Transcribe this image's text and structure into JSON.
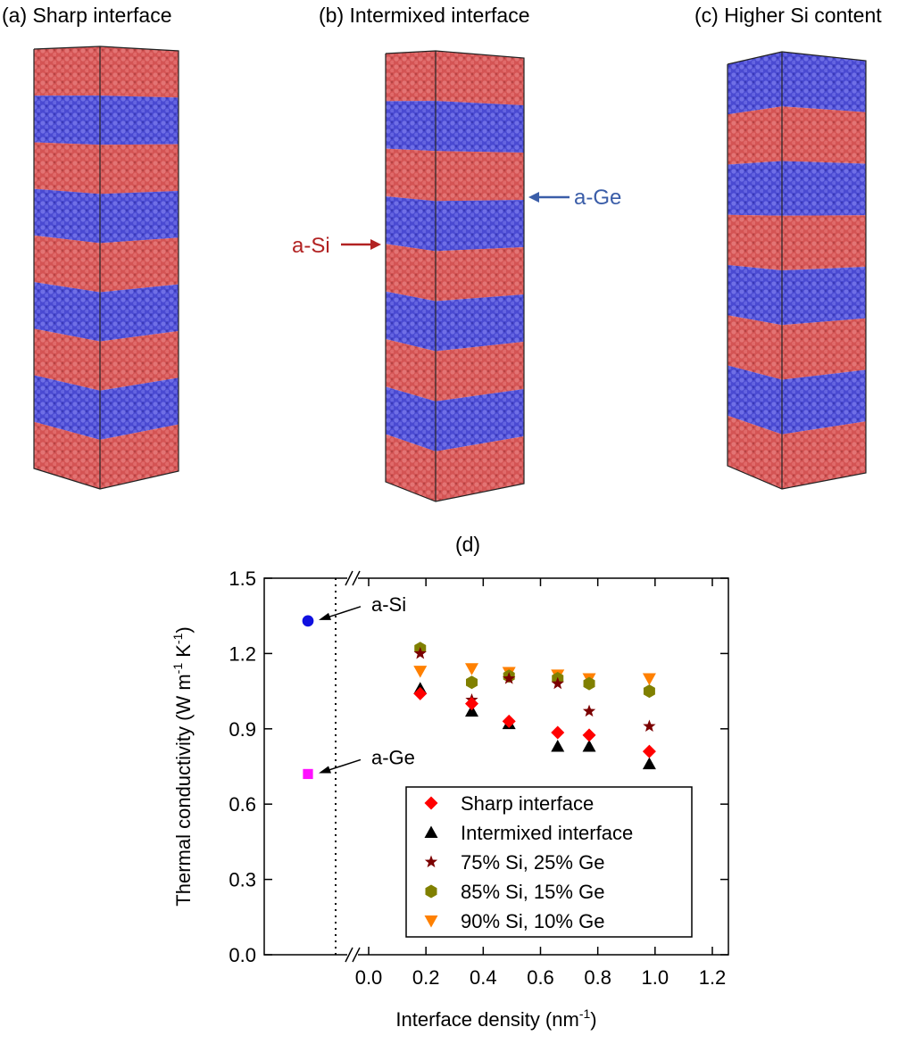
{
  "panels": [
    {
      "label": "(a) Sharp interface",
      "top_color": "#d95f5f",
      "layers": [
        "red",
        "blue",
        "red",
        "blue",
        "red",
        "blue",
        "red",
        "blue",
        "red"
      ]
    },
    {
      "label": "(b) Intermixed interface",
      "top_color": "#d95f5f",
      "layers": [
        "red",
        "blue",
        "red",
        "blue",
        "red",
        "blue",
        "red",
        "blue",
        "red"
      ],
      "annotations": [
        {
          "text": "a-Ge",
          "color": "#3a5da8"
        },
        {
          "text": "a-Si",
          "color": "#b22222"
        }
      ]
    },
    {
      "label": "(c) Higher Si content",
      "top_color": "#5a5ad8",
      "layers": [
        "blue",
        "red",
        "blue",
        "red",
        "blue",
        "red",
        "blue",
        "red"
      ]
    }
  ],
  "colors": {
    "si_atoms": "#dd5b5b",
    "ge_atoms": "#5b5bdd"
  },
  "chart_data": {
    "type": "scatter",
    "panel_label": "(d)",
    "xlabel": "Interface density (nm",
    "xlabel_sup": "-1",
    "xlabel_tail": ")",
    "ylabel": "Thermal conductivity (W m",
    "ylabel_sup1": "-1",
    "ylabel_mid": " K",
    "ylabel_sup2": "-1",
    "ylabel_tail": ")",
    "xlim": [
      0.0,
      1.2
    ],
    "ylim": [
      0.0,
      1.5
    ],
    "xticks": [
      "0.0",
      "0.2",
      "0.4",
      "0.6",
      "0.8",
      "1.0",
      "1.2"
    ],
    "yticks": [
      "0.0",
      "0.3",
      "0.6",
      "0.9",
      "1.2",
      "1.5"
    ],
    "axis_break": true,
    "reference_points": [
      {
        "label": "a-Si",
        "y": 1.33,
        "color": "#1010e0",
        "marker": "circle"
      },
      {
        "label": "a-Ge",
        "y": 0.72,
        "color": "#ff10ff",
        "marker": "square"
      }
    ],
    "series": [
      {
        "name": "Sharp interface",
        "marker": "diamond",
        "color": "#ff0000",
        "x": [
          0.18,
          0.36,
          0.49,
          0.66,
          0.77,
          0.98
        ],
        "y": [
          1.04,
          1.0,
          0.93,
          0.885,
          0.875,
          0.81
        ]
      },
      {
        "name": "Intermixed interface",
        "marker": "triangle-up",
        "color": "#000000",
        "x": [
          0.18,
          0.36,
          0.49,
          0.66,
          0.77,
          0.98
        ],
        "y": [
          1.06,
          0.97,
          0.92,
          0.83,
          0.83,
          0.76
        ]
      },
      {
        "name": "75% Si, 25% Ge",
        "marker": "star",
        "color": "#7b0000",
        "x": [
          0.18,
          0.36,
          0.49,
          0.66,
          0.77,
          0.98
        ],
        "y": [
          1.2,
          1.015,
          1.1,
          1.08,
          0.97,
          0.91
        ]
      },
      {
        "name": "85% Si, 15% Ge",
        "marker": "hexagon",
        "color": "#808000",
        "x": [
          0.18,
          0.36,
          0.49,
          0.66,
          0.77,
          0.98
        ],
        "y": [
          1.22,
          1.085,
          1.11,
          1.1,
          1.08,
          1.05
        ]
      },
      {
        "name": "90% Si, 10% Ge",
        "marker": "triangle-down",
        "color": "#ff8000",
        "x": [
          0.18,
          0.36,
          0.49,
          0.66,
          0.77,
          0.98
        ],
        "y": [
          1.13,
          1.14,
          1.125,
          1.115,
          1.1,
          1.1
        ]
      }
    ],
    "legend_position": "lower-right"
  }
}
